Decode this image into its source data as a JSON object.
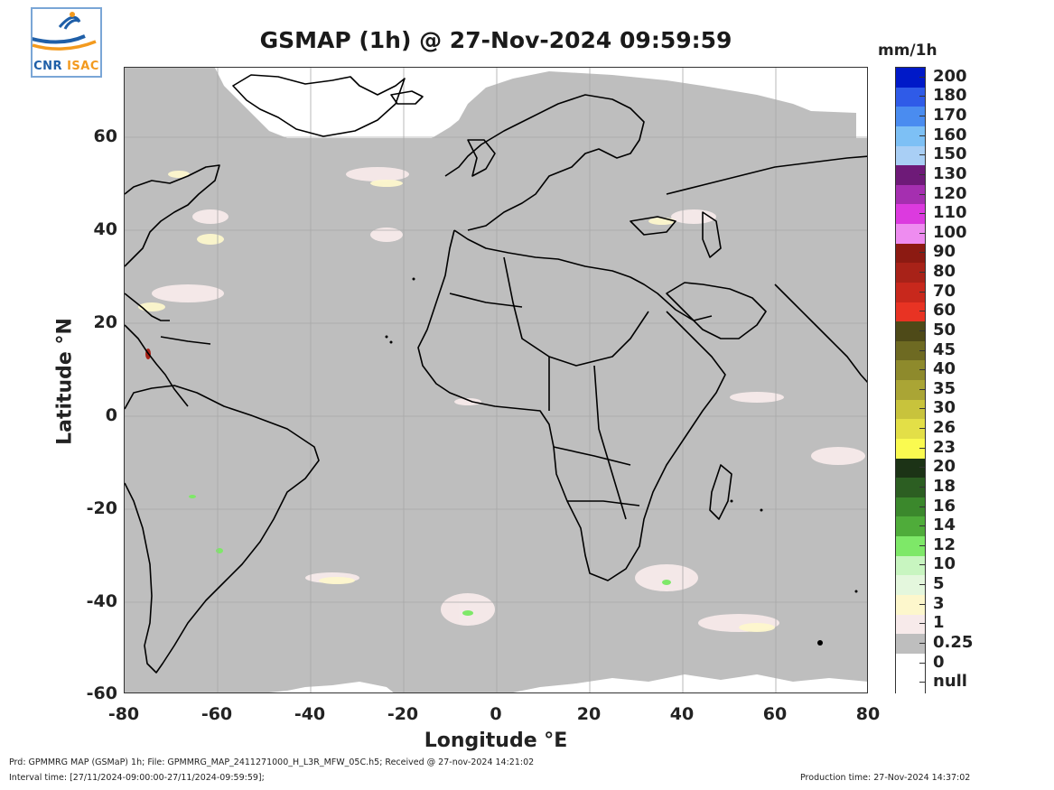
{
  "title": "GSMAP (1h) @ 27-Nov-2024 09:59:59",
  "logo": {
    "text_cnr": "CNR",
    "text_isac": "ISAC"
  },
  "axes": {
    "xlabel": "Longitude °E",
    "ylabel": "Latitude °N",
    "xlim": [
      -80,
      80
    ],
    "ylim": [
      -60,
      75
    ],
    "xticks": [
      "-80",
      "-60",
      "-40",
      "-20",
      "0",
      "20",
      "40",
      "60",
      "80"
    ],
    "yticks": [
      "60",
      "40",
      "20",
      "0",
      "-20",
      "-40",
      "-60"
    ],
    "grid": true
  },
  "colorbar": {
    "unit": "mm/1h",
    "levels": [
      {
        "label": "200",
        "color": "#0019c8"
      },
      {
        "label": "180",
        "color": "#2f5be8"
      },
      {
        "label": "170",
        "color": "#4a8cf0"
      },
      {
        "label": "160",
        "color": "#7dc0f5"
      },
      {
        "label": "150",
        "color": "#a9cff5"
      },
      {
        "label": "130",
        "color": "#6e1a78"
      },
      {
        "label": "120",
        "color": "#a52fb0"
      },
      {
        "label": "110",
        "color": "#dc3adf"
      },
      {
        "label": "100",
        "color": "#ee8cf0"
      },
      {
        "label": "90",
        "color": "#8c1a12"
      },
      {
        "label": "80",
        "color": "#a82218"
      },
      {
        "label": "70",
        "color": "#c8281c"
      },
      {
        "label": "60",
        "color": "#e83323"
      },
      {
        "label": "50",
        "color": "#4e4a18"
      },
      {
        "label": "45",
        "color": "#6e6a22"
      },
      {
        "label": "40",
        "color": "#8e8a2c"
      },
      {
        "label": "35",
        "color": "#aaa535"
      },
      {
        "label": "30",
        "color": "#c8c33c"
      },
      {
        "label": "26",
        "color": "#e3df47"
      },
      {
        "label": "23",
        "color": "#fafa50"
      },
      {
        "label": "20",
        "color": "#1c3316"
      },
      {
        "label": "18",
        "color": "#2c5e22"
      },
      {
        "label": "16",
        "color": "#3b882c"
      },
      {
        "label": "14",
        "color": "#4fac3a"
      },
      {
        "label": "12",
        "color": "#7ee868"
      },
      {
        "label": "10",
        "color": "#c8f5c0"
      },
      {
        "label": "5",
        "color": "#e4f7dd"
      },
      {
        "label": "3",
        "color": "#fdf7cc"
      },
      {
        "label": "1",
        "color": "#f7eaea"
      },
      {
        "label": "0.25",
        "color": "#bebebe"
      },
      {
        "label": "0",
        "color": "#ffffff"
      },
      {
        "label": "null",
        "color": ""
      }
    ]
  },
  "colors": {
    "no_rain": "#bebebe",
    "null": "#ffffff",
    "coast": "#000000",
    "grid": "#a8a8a8"
  },
  "footer": {
    "line1": "Prd: GPMMRG MAP (GSMaP) 1h; File: GPMMRG_MAP_2411271000_H_L3R_MFW_05C.h5; Received @ 27-nov-2024 14:21:02",
    "line2": "Interval time: [27/11/2024-09:00:00-27/11/2024-09:59:59];",
    "production": "Production time: 27-Nov-2024 14:37:02"
  }
}
